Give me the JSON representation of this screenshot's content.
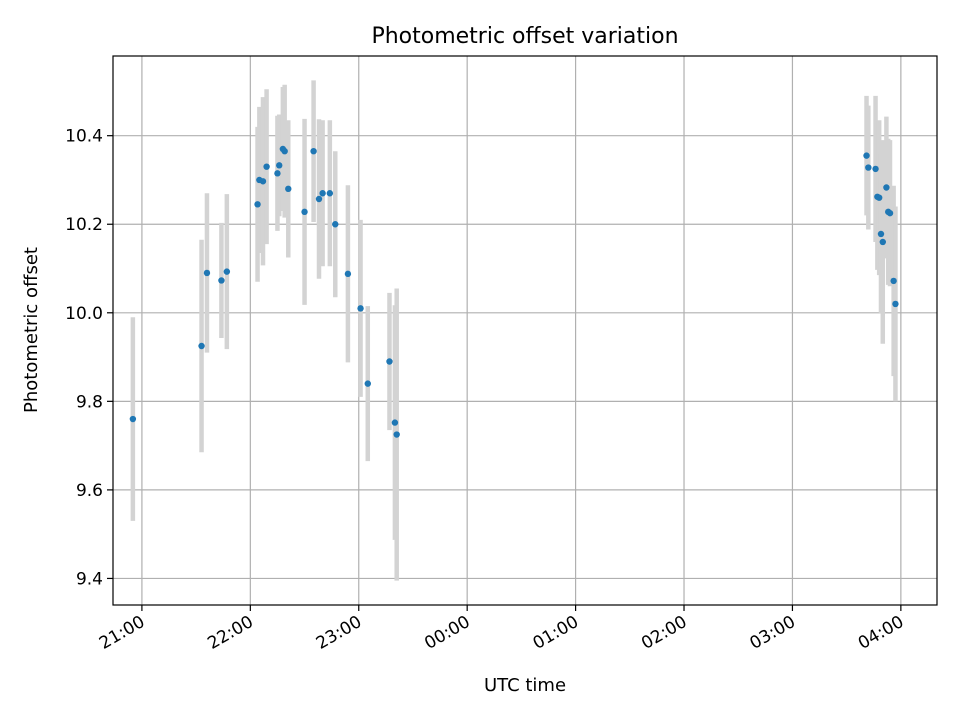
{
  "chart_data": {
    "type": "scatter",
    "title": "Photometric offset variation",
    "xlabel": "UTC time",
    "ylabel": "Photometric offset",
    "x_tick_labels": [
      "21:00",
      "22:00",
      "23:00",
      "00:00",
      "01:00",
      "02:00",
      "03:00",
      "04:00"
    ],
    "y_tick_labels": [
      "9.4",
      "9.6",
      "9.8",
      "10.0",
      "10.2",
      "10.4"
    ],
    "x_axis_range": [
      "20:44",
      "04:20"
    ],
    "ylim": [
      9.34,
      10.58
    ],
    "grid": true,
    "colors": {
      "marker": "#1f77b4",
      "errorbar": "#d3d3d3",
      "grid": "#b0b0b0"
    },
    "points": [
      {
        "time": "20:55",
        "value": 9.76,
        "error": 0.23
      },
      {
        "time": "21:33",
        "value": 9.925,
        "error": 0.24
      },
      {
        "time": "21:36",
        "value": 10.09,
        "error": 0.18
      },
      {
        "time": "21:44",
        "value": 10.073,
        "error": 0.13
      },
      {
        "time": "21:47",
        "value": 10.093,
        "error": 0.175
      },
      {
        "time": "22:04",
        "value": 10.245,
        "error": 0.175
      },
      {
        "time": "22:05",
        "value": 10.3,
        "error": 0.165
      },
      {
        "time": "22:07",
        "value": 10.297,
        "error": 0.19
      },
      {
        "time": "22:09",
        "value": 10.33,
        "error": 0.175
      },
      {
        "time": "22:15",
        "value": 10.315,
        "error": 0.13
      },
      {
        "time": "22:16",
        "value": 10.333,
        "error": 0.115
      },
      {
        "time": "22:18",
        "value": 10.37,
        "error": 0.14
      },
      {
        "time": "22:19",
        "value": 10.365,
        "error": 0.15
      },
      {
        "time": "22:21",
        "value": 10.28,
        "error": 0.155
      },
      {
        "time": "22:30",
        "value": 10.228,
        "error": 0.21
      },
      {
        "time": "22:35",
        "value": 10.365,
        "error": 0.16
      },
      {
        "time": "22:38",
        "value": 10.257,
        "error": 0.18
      },
      {
        "time": "22:40",
        "value": 10.27,
        "error": 0.165
      },
      {
        "time": "22:44",
        "value": 10.27,
        "error": 0.165
      },
      {
        "time": "22:47",
        "value": 10.2,
        "error": 0.165
      },
      {
        "time": "22:54",
        "value": 10.088,
        "error": 0.2
      },
      {
        "time": "23:01",
        "value": 10.01,
        "error": 0.2
      },
      {
        "time": "23:05",
        "value": 9.84,
        "error": 0.175
      },
      {
        "time": "23:17",
        "value": 9.89,
        "error": 0.155
      },
      {
        "time": "23:20",
        "value": 9.752,
        "error": 0.265
      },
      {
        "time": "23:21",
        "value": 9.725,
        "error": 0.33
      },
      {
        "time": "03:41",
        "value": 10.355,
        "error": 0.135
      },
      {
        "time": "03:42",
        "value": 10.328,
        "error": 0.14
      },
      {
        "time": "03:46",
        "value": 10.325,
        "error": 0.165
      },
      {
        "time": "03:47",
        "value": 10.262,
        "error": 0.165
      },
      {
        "time": "03:48",
        "value": 10.26,
        "error": 0.175
      },
      {
        "time": "03:49",
        "value": 10.178,
        "error": 0.18
      },
      {
        "time": "03:50",
        "value": 10.16,
        "error": 0.23
      },
      {
        "time": "03:52",
        "value": 10.283,
        "error": 0.16
      },
      {
        "time": "03:53",
        "value": 10.228,
        "error": 0.165
      },
      {
        "time": "03:54",
        "value": 10.225,
        "error": 0.165
      },
      {
        "time": "03:56",
        "value": 10.072,
        "error": 0.215
      },
      {
        "time": "03:57",
        "value": 10.02,
        "error": 0.22
      }
    ]
  }
}
